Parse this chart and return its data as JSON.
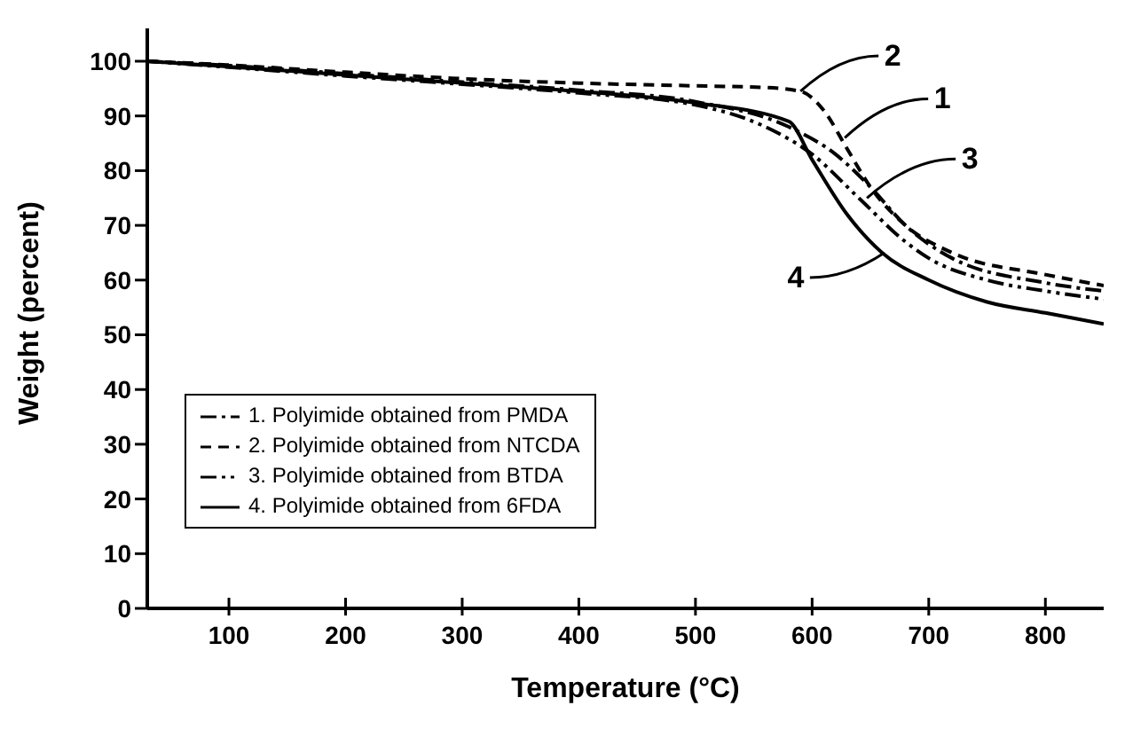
{
  "chart_data": {
    "type": "line",
    "xlabel": "Temperature (°C)",
    "ylabel": "Weight (percent)",
    "xlim": [
      30,
      850
    ],
    "xticks": [
      100,
      200,
      300,
      400,
      500,
      600,
      700,
      800
    ],
    "ylim": [
      0,
      106
    ],
    "yticks": [
      0,
      10,
      20,
      30,
      40,
      50,
      60,
      70,
      80,
      90,
      100
    ],
    "legend": "bottom left",
    "marker": "none",
    "series": [
      {
        "name": "1. Polyimide obtained from PMDA",
        "color": "#000000",
        "line_style": "dashdot",
        "x": [
          30,
          100,
          200,
          300,
          400,
          500,
          580,
          620,
          650,
          680,
          720,
          800,
          850
        ],
        "values": [
          100,
          99.2,
          97.7,
          96.2,
          94.7,
          92.6,
          88,
          83,
          77,
          70,
          64,
          59.5,
          58
        ]
      },
      {
        "name": "2. Polyimide obtained from NTCDA",
        "color": "#000000",
        "line_style": "dashed",
        "x": [
          30,
          100,
          200,
          300,
          400,
          500,
          560,
          590,
          610,
          630,
          650,
          680,
          720,
          800,
          850
        ],
        "values": [
          100,
          99.3,
          98,
          96.8,
          96,
          95.5,
          95.2,
          94.5,
          91,
          84,
          77,
          70,
          65,
          61,
          59
        ]
      },
      {
        "name": "3. Polyimide obtained from BTDA",
        "color": "#000000",
        "line_style": "dashdotdot",
        "x": [
          30,
          100,
          200,
          300,
          400,
          500,
          560,
          600,
          640,
          680,
          700,
          750,
          800,
          850
        ],
        "values": [
          100,
          98.9,
          97.3,
          95.8,
          94.2,
          92,
          88,
          83,
          75,
          67,
          64,
          60,
          58,
          56.5
        ]
      },
      {
        "name": "4. Polyimide obtained from 6FDA",
        "color": "#000000",
        "line_style": "solid",
        "x": [
          30,
          100,
          200,
          300,
          400,
          500,
          580,
          600,
          630,
          660,
          700,
          750,
          800,
          850
        ],
        "values": [
          100,
          99,
          97.5,
          96,
          94.5,
          92.4,
          89,
          82,
          72,
          65,
          60,
          56,
          54,
          52
        ]
      }
    ],
    "annotations": [
      {
        "text": "1",
        "x": 628,
        "y": 86
      },
      {
        "text": "2",
        "x": 590,
        "y": 94.5
      },
      {
        "text": "3",
        "x": 647,
        "y": 75
      },
      {
        "text": "4",
        "x": 662,
        "y": 65
      }
    ]
  }
}
